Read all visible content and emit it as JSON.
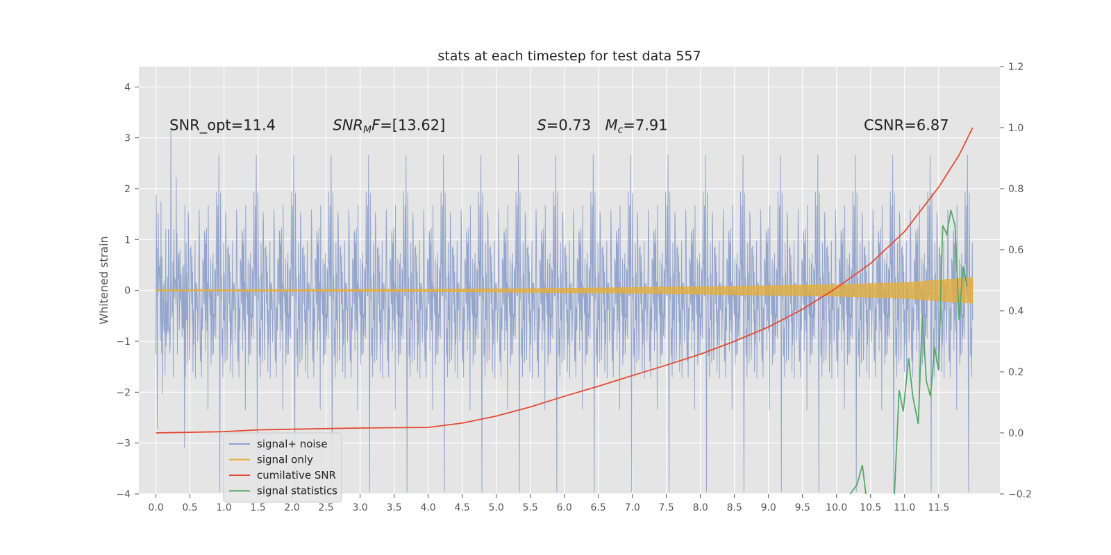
{
  "chart_data": {
    "type": "line",
    "title": "stats at each timestep for test data 557",
    "ylabel": "Whitened strain",
    "xlim": [
      -0.25,
      12.4
    ],
    "ylim": [
      -4.0,
      4.4
    ],
    "y2lim": [
      -0.2,
      1.2
    ],
    "x_ticks": [
      0.0,
      0.5,
      1.0,
      1.5,
      2.0,
      2.5,
      3.0,
      3.5,
      4.0,
      4.5,
      5.0,
      5.5,
      6.0,
      6.5,
      7.0,
      7.5,
      8.0,
      8.5,
      9.0,
      9.5,
      10.0,
      10.5,
      11.0,
      11.5
    ],
    "x_tick_labels": [
      "0.0",
      "0.5",
      "1.0",
      "1.5",
      "2.0",
      "2.5",
      "3.0",
      "3.5",
      "4.0",
      "4.5",
      "5.0",
      "5.5",
      "6.0",
      "6.5",
      "7.0",
      "7.5",
      "8.0",
      "8.5",
      "9.0",
      "9.5",
      "10.0",
      "10.5",
      "11.0",
      "11.5"
    ],
    "y_ticks": [
      -4,
      -3,
      -2,
      -1,
      0,
      1,
      2,
      3,
      4
    ],
    "y_tick_labels": [
      "−4",
      "−3",
      "−2",
      "−1",
      "0",
      "1",
      "2",
      "3",
      "4"
    ],
    "y2_ticks": [
      -0.2,
      0.0,
      0.2,
      0.4,
      0.6,
      0.8,
      1.0,
      1.2
    ],
    "y2_tick_labels": [
      "−0.2",
      "0.0",
      "0.2",
      "0.4",
      "0.6",
      "0.8",
      "1.0",
      "1.2"
    ],
    "grid": true,
    "legend_placement": "lower-left",
    "annotations": [
      {
        "id": "snr-opt",
        "x": 0.2,
        "y": 3.25,
        "parts": [
          {
            "t": "SNR_opt=11.4"
          }
        ]
      },
      {
        "id": "snr-mf",
        "x": 2.6,
        "y": 3.25,
        "parts": [
          {
            "t": "SNR",
            "i": true
          },
          {
            "t": "M",
            "i": true,
            "sub": true
          },
          {
            "t": "F",
            "i": true
          },
          {
            "t": "=[13.62]"
          }
        ]
      },
      {
        "id": "spin",
        "x": 5.6,
        "y": 3.25,
        "parts": [
          {
            "t": "S",
            "i": true
          },
          {
            "t": "=0.73"
          }
        ]
      },
      {
        "id": "chirp-mass",
        "x": 6.6,
        "y": 3.25,
        "parts": [
          {
            "t": "M",
            "i": true
          },
          {
            "t": "c",
            "i": true,
            "sub": true
          },
          {
            "t": "=7.91"
          }
        ]
      },
      {
        "id": "csnr",
        "x": 10.4,
        "y": 3.25,
        "parts": [
          {
            "t": "CSNR=6.87"
          }
        ]
      }
    ],
    "series": [
      {
        "name": "signal+ noise",
        "axis": "left",
        "color": "#8da0cb",
        "kind": "noise",
        "x_range": [
          0.0,
          12.0
        ],
        "sigma": 1.0,
        "peak_max": 4.1
      },
      {
        "name": "signal only",
        "axis": "left",
        "color": "#e5ae38",
        "kind": "chirp",
        "x_range": [
          0.0,
          12.0
        ],
        "amplitude": [
          [
            0.0,
            0.01
          ],
          [
            4.0,
            0.02
          ],
          [
            6.0,
            0.04
          ],
          [
            8.0,
            0.07
          ],
          [
            10.0,
            0.11
          ],
          [
            11.0,
            0.15
          ],
          [
            12.0,
            0.25
          ]
        ]
      },
      {
        "name": "cumilative SNR",
        "axis": "right",
        "color": "#e24a33",
        "points": [
          [
            0.0,
            0.0
          ],
          [
            0.5,
            0.002
          ],
          [
            1.0,
            0.004
          ],
          [
            1.5,
            0.01
          ],
          [
            2.0,
            0.012
          ],
          [
            2.5,
            0.014
          ],
          [
            3.0,
            0.016
          ],
          [
            3.5,
            0.017
          ],
          [
            4.0,
            0.018
          ],
          [
            4.5,
            0.032
          ],
          [
            5.0,
            0.055
          ],
          [
            5.5,
            0.085
          ],
          [
            6.0,
            0.12
          ],
          [
            6.5,
            0.153
          ],
          [
            7.0,
            0.188
          ],
          [
            7.5,
            0.222
          ],
          [
            8.0,
            0.258
          ],
          [
            8.5,
            0.3
          ],
          [
            9.0,
            0.347
          ],
          [
            9.5,
            0.405
          ],
          [
            10.0,
            0.475
          ],
          [
            10.5,
            0.555
          ],
          [
            11.0,
            0.66
          ],
          [
            11.5,
            0.805
          ],
          [
            11.8,
            0.91
          ],
          [
            12.0,
            1.0
          ]
        ]
      },
      {
        "name": "signal statistics",
        "axis": "right",
        "color": "#55a868",
        "segments": [
          [
            [
              10.2,
              -0.2
            ],
            [
              10.3,
              -0.17
            ],
            [
              10.38,
              -0.105
            ],
            [
              10.43,
              -0.2
            ]
          ],
          [
            [
              10.85,
              -0.2
            ],
            [
              10.92,
              0.14
            ],
            [
              10.98,
              0.07
            ],
            [
              11.06,
              0.245
            ],
            [
              11.12,
              0.12
            ],
            [
              11.2,
              0.03
            ],
            [
              11.26,
              0.385
            ],
            [
              11.32,
              0.17
            ],
            [
              11.38,
              0.12
            ],
            [
              11.44,
              0.28
            ],
            [
              11.5,
              0.205
            ],
            [
              11.56,
              0.68
            ],
            [
              11.62,
              0.65
            ],
            [
              11.68,
              0.73
            ],
            [
              11.74,
              0.68
            ],
            [
              11.8,
              0.37
            ],
            [
              11.86,
              0.545
            ],
            [
              11.92,
              0.48
            ]
          ]
        ]
      }
    ]
  }
}
